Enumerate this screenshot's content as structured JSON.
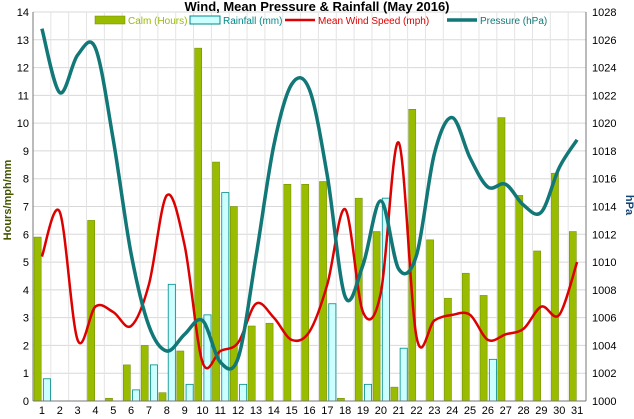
{
  "chart_data": {
    "type": "bar",
    "title": "Wind, Mean Pressure & Rainfall (May 2016)",
    "ylabel": "Hours/mph/mm",
    "y2label": "hPa",
    "xlabel": "",
    "ylim": [
      0,
      14
    ],
    "y2lim": [
      1000,
      1028
    ],
    "grid": true,
    "legend_position": "top",
    "categories": [
      "1",
      "2",
      "3",
      "4",
      "5",
      "6",
      "7",
      "8",
      "9",
      "10",
      "11",
      "12",
      "13",
      "14",
      "15",
      "16",
      "17",
      "18",
      "19",
      "20",
      "21",
      "22",
      "23",
      "24",
      "25",
      "26",
      "27",
      "28",
      "29",
      "30",
      "31"
    ],
    "yticks": [
      0,
      1,
      2,
      3,
      4,
      5,
      6,
      7,
      8,
      9,
      10,
      11,
      12,
      13,
      14
    ],
    "y2ticks": [
      1000,
      1002,
      1004,
      1006,
      1008,
      1010,
      1012,
      1014,
      1016,
      1018,
      1020,
      1022,
      1024,
      1026,
      1028
    ],
    "series": [
      {
        "name": "Calm (Hours)",
        "kind": "bar",
        "axis": "left",
        "color": "#99bb00",
        "values": [
          5.9,
          0,
          0,
          6.5,
          0.1,
          1.3,
          2.0,
          0.3,
          1.8,
          12.7,
          8.6,
          7.0,
          2.7,
          2.8,
          7.8,
          7.8,
          7.9,
          0.1,
          7.3,
          6.1,
          0.5,
          10.5,
          5.8,
          3.7,
          4.6,
          3.8,
          10.2,
          7.4,
          5.4,
          8.2,
          6.1
        ]
      },
      {
        "name": "Rainfall (mm)",
        "kind": "bar",
        "axis": "left",
        "color": "#ccffff",
        "values": [
          0,
          0.8,
          0,
          0,
          0,
          0,
          0.4,
          1.3,
          4.2,
          0.6,
          3.1,
          7.5,
          0.6,
          0,
          0,
          0,
          0,
          3.5,
          0,
          0.6,
          7.3,
          1.9,
          0,
          0,
          0,
          0,
          1.5,
          0,
          0,
          0,
          0
        ]
      },
      {
        "name": "Mean Wind Speed (mph)",
        "kind": "line",
        "axis": "left",
        "color": "#dd0000",
        "values": [
          5.2,
          6.8,
          2.2,
          3.4,
          3.2,
          2.7,
          4.2,
          7.4,
          5.6,
          1.4,
          1.8,
          2.1,
          3.5,
          3.0,
          2.2,
          2.5,
          4.2,
          6.9,
          3.2,
          3.9,
          9.3,
          2.3,
          2.9,
          3.1,
          3.1,
          2.2,
          2.4,
          2.6,
          3.4,
          3.1,
          5.0
        ]
      },
      {
        "name": "Pressure (hPa)",
        "kind": "line",
        "axis": "right",
        "color": "#117777",
        "values": [
          1026.8,
          1022.2,
          1024.9,
          1025.4,
          1018.8,
          1010.6,
          1005.4,
          1003.6,
          1004.8,
          1005.8,
          1002.8,
          1003.1,
          1010.4,
          1018.4,
          1022.8,
          1022.4,
          1016.2,
          1007.5,
          1009.8,
          1014.4,
          1009.5,
          1010.5,
          1017.8,
          1020.4,
          1017.5,
          1015.4,
          1015.6,
          1014.1,
          1013.6,
          1016.8,
          1018.8
        ]
      }
    ]
  }
}
